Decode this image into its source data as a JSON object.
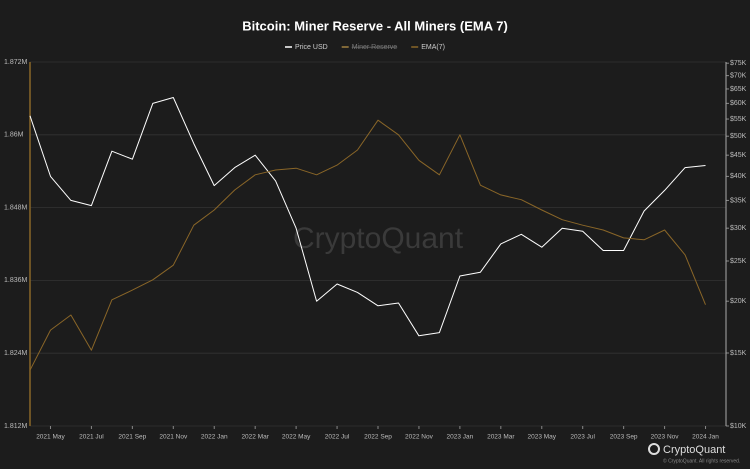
{
  "chart_data": {
    "type": "line",
    "title": "Bitcoin: Miner Reserve - All Miners (EMA 7)",
    "watermark": "CryptoQuant",
    "brand": "CryptoQuant",
    "copyright": "© CryptoQuant. All rights reserved.",
    "x": [
      "2021-04",
      "2021-05",
      "2021-06",
      "2021-07",
      "2021-08",
      "2021-09",
      "2021-10",
      "2021-11",
      "2021-12",
      "2022-01",
      "2022-02",
      "2022-03",
      "2022-04",
      "2022-05",
      "2022-06",
      "2022-07",
      "2022-08",
      "2022-09",
      "2022-10",
      "2022-11",
      "2022-12",
      "2023-01",
      "2023-02",
      "2023-03",
      "2023-04",
      "2023-05",
      "2023-06",
      "2023-07",
      "2023-08",
      "2023-09",
      "2023-10",
      "2023-11",
      "2023-12",
      "2024-01"
    ],
    "xlim": [
      "2021-04",
      "2024-02"
    ],
    "xticks": [
      {
        "value": "2021-05",
        "label": "2021 May"
      },
      {
        "value": "2021-07",
        "label": "2021 Jul"
      },
      {
        "value": "2021-09",
        "label": "2021 Sep"
      },
      {
        "value": "2021-11",
        "label": "2021 Nov"
      },
      {
        "value": "2022-01",
        "label": "2022 Jan"
      },
      {
        "value": "2022-03",
        "label": "2022 Mar"
      },
      {
        "value": "2022-05",
        "label": "2022 May"
      },
      {
        "value": "2022-07",
        "label": "2022 Jul"
      },
      {
        "value": "2022-09",
        "label": "2022 Sep"
      },
      {
        "value": "2022-11",
        "label": "2022 Nov"
      },
      {
        "value": "2023-01",
        "label": "2023 Jan"
      },
      {
        "value": "2023-03",
        "label": "2023 Mar"
      },
      {
        "value": "2023-05",
        "label": "2023 May"
      },
      {
        "value": "2023-07",
        "label": "2023 Jul"
      },
      {
        "value": "2023-09",
        "label": "2023 Sep"
      },
      {
        "value": "2023-11",
        "label": "2023 Nov"
      },
      {
        "value": "2024-01",
        "label": "2024 Jan"
      }
    ],
    "ylim": [
      1812000,
      1872000
    ],
    "yticks": [
      {
        "value": 1812000,
        "label": "1.812M"
      },
      {
        "value": 1824000,
        "label": "1.824M"
      },
      {
        "value": 1836000,
        "label": "1.836M"
      },
      {
        "value": 1848000,
        "label": "1.848M"
      },
      {
        "value": 1860000,
        "label": "1.86M"
      },
      {
        "value": 1872000,
        "label": "1.872M"
      }
    ],
    "y2lim": [
      10000,
      75500
    ],
    "y2log": true,
    "y2ticks": [
      {
        "value": 10000,
        "label": "$10K"
      },
      {
        "value": 15000,
        "label": "$15K"
      },
      {
        "value": 20000,
        "label": "$20K"
      },
      {
        "value": 25000,
        "label": "$25K"
      },
      {
        "value": 30000,
        "label": "$30K"
      },
      {
        "value": 35000,
        "label": "$35K"
      },
      {
        "value": 40000,
        "label": "$40K"
      },
      {
        "value": 45000,
        "label": "$45K"
      },
      {
        "value": 50000,
        "label": "$50K"
      },
      {
        "value": 55000,
        "label": "$55K"
      },
      {
        "value": 60000,
        "label": "$60K"
      },
      {
        "value": 65000,
        "label": "$65K"
      },
      {
        "value": 70000,
        "label": "$70K"
      },
      {
        "value": 75000,
        "label": "$75K"
      }
    ],
    "grid": true,
    "series": [
      {
        "name": "Price USD",
        "color": "#ffffff",
        "axis": "y2",
        "values": [
          56000,
          40000,
          35000,
          34000,
          46000,
          44000,
          60000,
          62000,
          48000,
          38000,
          42000,
          45000,
          39000,
          30000,
          20000,
          22000,
          21000,
          19500,
          19800,
          16500,
          16800,
          23000,
          23500,
          27500,
          29000,
          27000,
          30000,
          29500,
          26500,
          26500,
          33000,
          37000,
          42000,
          42500
        ]
      },
      {
        "name": "Miner Reserve",
        "color": "#a08040",
        "axis": "y",
        "hidden": true
      },
      {
        "name": "EMA(7)",
        "color": "#8a6628",
        "axis": "y",
        "values": [
          1821200,
          1827800,
          1830300,
          1824500,
          1832800,
          1834400,
          1836100,
          1838500,
          1845100,
          1847600,
          1850900,
          1853400,
          1854200,
          1854500,
          1853400,
          1855000,
          1857500,
          1862400,
          1860000,
          1855800,
          1853400,
          1860000,
          1851700,
          1850100,
          1849300,
          1847600,
          1846000,
          1845100,
          1844300,
          1843000,
          1842700,
          1844300,
          1840200,
          1832000
        ]
      }
    ]
  }
}
